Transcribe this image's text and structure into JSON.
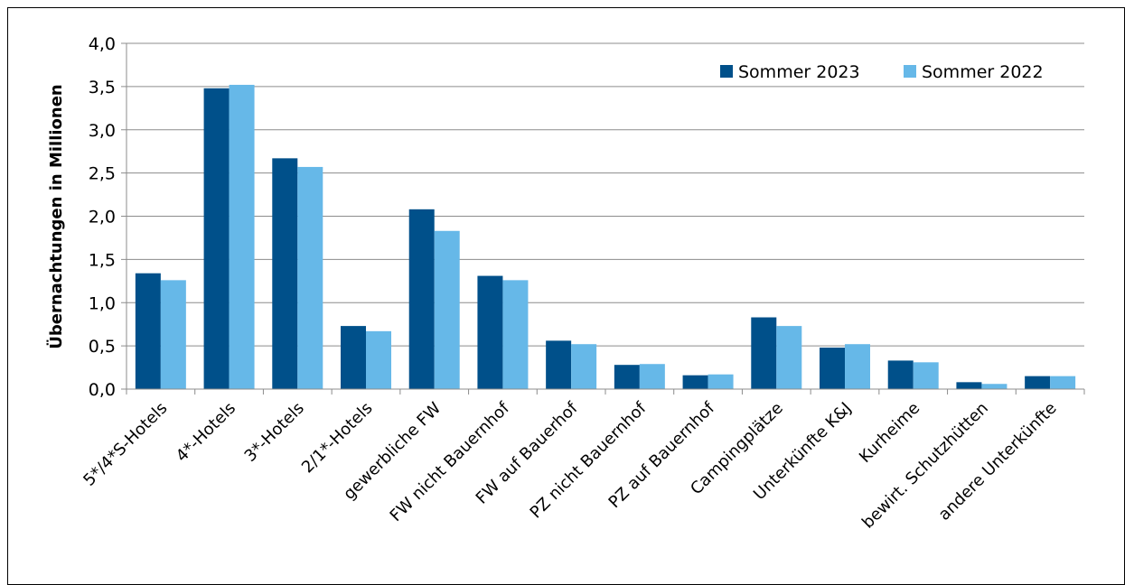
{
  "chart_data": {
    "type": "bar",
    "ylabel": "Übernachtungen in Millionen",
    "xlabel": "",
    "title": "",
    "ylim": [
      0,
      4.0
    ],
    "ytick_step": 0.5,
    "ytick_labels": [
      "0,0",
      "0,5",
      "1,0",
      "1,5",
      "2,0",
      "2,5",
      "3,0",
      "3,5",
      "4,0"
    ],
    "grid": true,
    "legend_position": "top-right",
    "categories": [
      "5*/4*S-Hotels",
      "4*-Hotels",
      "3*-Hotels",
      "2/1*-Hotels",
      "gewerbliche FW",
      "FW nicht Bauernhof",
      "FW auf Bauerhof",
      "PZ nicht Bauernhof",
      "PZ auf Bauernhof",
      "Campingplätze",
      "Unterkünfte K&J",
      "Kurheime",
      "bewirt. Schutzhütten",
      "andere Unterkünfte"
    ],
    "series": [
      {
        "name": "Sommer 2023",
        "color": "#00508a",
        "values": [
          1.34,
          3.48,
          2.67,
          0.73,
          2.08,
          1.31,
          0.56,
          0.28,
          0.16,
          0.83,
          0.48,
          0.33,
          0.08,
          0.15
        ]
      },
      {
        "name": "Sommer 2022",
        "color": "#66b8e8",
        "values": [
          1.26,
          3.52,
          2.57,
          0.67,
          1.83,
          1.26,
          0.52,
          0.29,
          0.17,
          0.73,
          0.52,
          0.31,
          0.06,
          0.15
        ]
      }
    ]
  }
}
